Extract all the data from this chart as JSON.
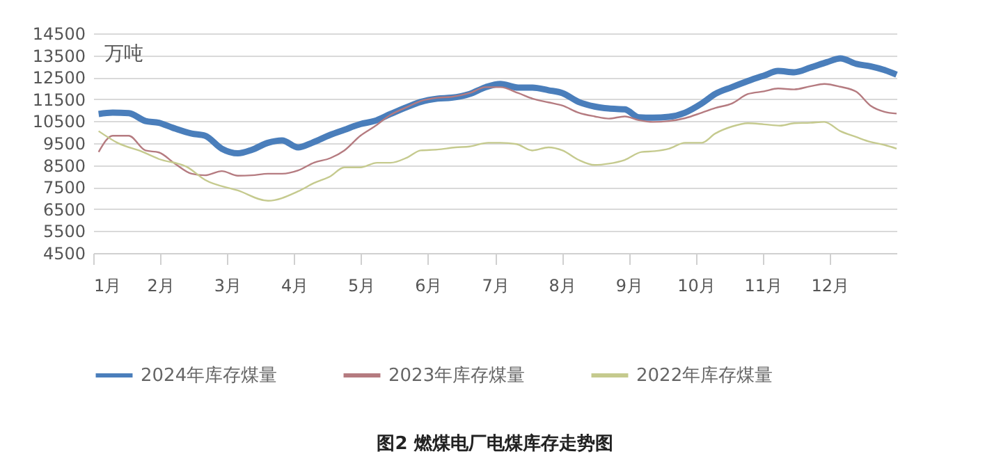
{
  "chart_data": {
    "type": "line",
    "title": "图2  燃煤电厂电煤库存走势图",
    "ylabel": "万吨",
    "xlim": [
      1,
      13
    ],
    "xticks": [
      {
        "value": 1,
        "label": "1月"
      },
      {
        "value": 2,
        "label": "2月"
      },
      {
        "value": 3,
        "label": "3月"
      },
      {
        "value": 4,
        "label": "4月"
      },
      {
        "value": 5,
        "label": "5月"
      },
      {
        "value": 6,
        "label": "6月"
      },
      {
        "value": 7,
        "label": "7月"
      },
      {
        "value": 8,
        "label": "8月"
      },
      {
        "value": 9,
        "label": "9月"
      },
      {
        "value": 10,
        "label": "10月"
      },
      {
        "value": 11,
        "label": "11月"
      },
      {
        "value": 12,
        "label": "12月"
      }
    ],
    "ylim": [
      4500,
      14500
    ],
    "yticks": [
      4500,
      5500,
      6500,
      7500,
      8500,
      9500,
      10500,
      11500,
      12500,
      13500,
      14500
    ],
    "grid": "y",
    "legend": "bottom",
    "marker": "none",
    "line_style": "solid",
    "series": [
      {
        "name": "2024年库存煤量",
        "color": "#4a7ebb",
        "x": [
          1.08,
          1.29,
          1.53,
          1.78,
          1.98,
          2.19,
          2.47,
          2.67,
          2.92,
          3.16,
          3.37,
          3.61,
          3.82,
          4.06,
          4.27,
          4.54,
          4.75,
          4.99,
          5.2,
          5.44,
          5.69,
          5.89,
          6.14,
          6.35,
          6.62,
          6.86,
          7.08,
          7.35,
          7.56,
          7.8,
          8.01,
          8.25,
          8.49,
          8.7,
          8.94,
          9.15,
          9.36,
          9.6,
          9.84,
          10.09,
          10.29,
          10.54,
          10.78,
          11.02,
          11.23,
          11.47,
          11.71,
          11.96,
          12.16,
          12.4,
          12.61,
          12.82,
          13.0
        ],
        "values": [
          10830,
          10890,
          10870,
          10510,
          10430,
          10200,
          9940,
          9840,
          9250,
          9040,
          9200,
          9520,
          9630,
          9310,
          9520,
          9880,
          10110,
          10370,
          10510,
          10830,
          11150,
          11380,
          11530,
          11570,
          11740,
          12050,
          12200,
          12030,
          12030,
          11910,
          11780,
          11380,
          11170,
          11080,
          11040,
          10680,
          10660,
          10700,
          10890,
          11310,
          11740,
          12050,
          12330,
          12580,
          12790,
          12730,
          12940,
          13190,
          13360,
          13110,
          13000,
          12830,
          12620
        ]
      },
      {
        "name": "2023年库存煤量",
        "color": "#b57b80",
        "x": [
          1.08,
          1.29,
          1.53,
          1.78,
          1.98,
          2.22,
          2.47,
          2.67,
          2.92,
          3.16,
          3.37,
          3.61,
          3.82,
          4.06,
          4.3,
          4.54,
          4.75,
          4.99,
          5.2,
          5.44,
          5.69,
          5.89,
          6.14,
          6.35,
          6.62,
          6.86,
          7.08,
          7.35,
          7.56,
          7.8,
          8.01,
          8.25,
          8.49,
          8.7,
          8.94,
          9.15,
          9.36,
          9.6,
          9.84,
          10.09,
          10.29,
          10.54,
          10.78,
          11.02,
          11.23,
          11.47,
          11.71,
          11.92,
          12.16,
          12.4,
          12.61,
          12.82,
          13.0
        ],
        "values": [
          9100,
          9840,
          9840,
          9170,
          9080,
          8570,
          8110,
          8040,
          8230,
          8020,
          8040,
          8110,
          8110,
          8260,
          8620,
          8820,
          9170,
          9840,
          10260,
          10790,
          11150,
          11420,
          11570,
          11610,
          11780,
          12050,
          12050,
          11780,
          11530,
          11360,
          11210,
          10890,
          10720,
          10620,
          10720,
          10550,
          10470,
          10510,
          10640,
          10890,
          11100,
          11310,
          11740,
          11860,
          11990,
          11950,
          12090,
          12200,
          12070,
          11840,
          11210,
          10930,
          10850
        ]
      },
      {
        "name": "2022年库存煤量",
        "color": "#c5ca8e",
        "x": [
          1.08,
          1.36,
          1.74,
          1.98,
          2.4,
          2.67,
          3.16,
          3.61,
          4.06,
          4.3,
          4.54,
          4.75,
          4.99,
          5.24,
          5.44,
          5.69,
          5.89,
          6.14,
          6.41,
          6.62,
          6.9,
          7.08,
          7.32,
          7.56,
          7.8,
          8.01,
          8.25,
          8.49,
          8.7,
          8.94,
          9.19,
          9.39,
          9.6,
          9.84,
          10.09,
          10.29,
          10.54,
          10.78,
          11.02,
          11.26,
          11.47,
          11.71,
          11.92,
          12.16,
          12.4,
          12.61,
          12.82,
          13.0
        ],
        "values": [
          10050,
          9520,
          9100,
          8780,
          8420,
          7830,
          7350,
          6880,
          7310,
          7690,
          7990,
          8400,
          8400,
          8610,
          8610,
          8850,
          9170,
          9210,
          9310,
          9350,
          9520,
          9520,
          9460,
          9170,
          9310,
          9170,
          8740,
          8510,
          8570,
          8740,
          9100,
          9140,
          9250,
          9520,
          9520,
          9940,
          10260,
          10410,
          10360,
          10300,
          10410,
          10430,
          10470,
          10050,
          9780,
          9560,
          9420,
          9250
        ]
      }
    ]
  }
}
